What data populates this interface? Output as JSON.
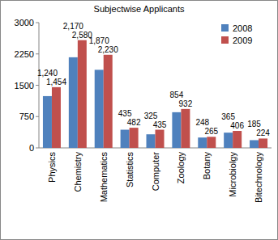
{
  "chart_data": {
    "type": "bar",
    "title": "Subjectwise Applicants",
    "categories": [
      "Physics",
      "Chemistry",
      "Mathematics",
      "Statistics",
      "Computer",
      "Zoology",
      "Botany",
      "Microbiolgy",
      "Bitechnology"
    ],
    "series": [
      {
        "name": "2008",
        "color": "#4f81bd",
        "values": [
          1240,
          2170,
          1870,
          435,
          325,
          854,
          248,
          365,
          185
        ],
        "value_labels": [
          "1,240",
          "2,170",
          "1,870",
          "435",
          "325",
          "854",
          "248",
          "365",
          "185"
        ]
      },
      {
        "name": "2009",
        "color": "#c0504d",
        "values": [
          1454,
          2580,
          2230,
          482,
          435,
          932,
          265,
          406,
          224
        ],
        "value_labels": [
          "1,454",
          "2,580",
          "2,230",
          "482",
          "435",
          "932",
          "265",
          "406",
          "224"
        ]
      }
    ],
    "ylim": [
      0,
      3000
    ],
    "yticks": [
      0,
      750,
      1500,
      2250,
      3000
    ],
    "grid": false,
    "legend": "upper-right",
    "data_labels": true
  }
}
